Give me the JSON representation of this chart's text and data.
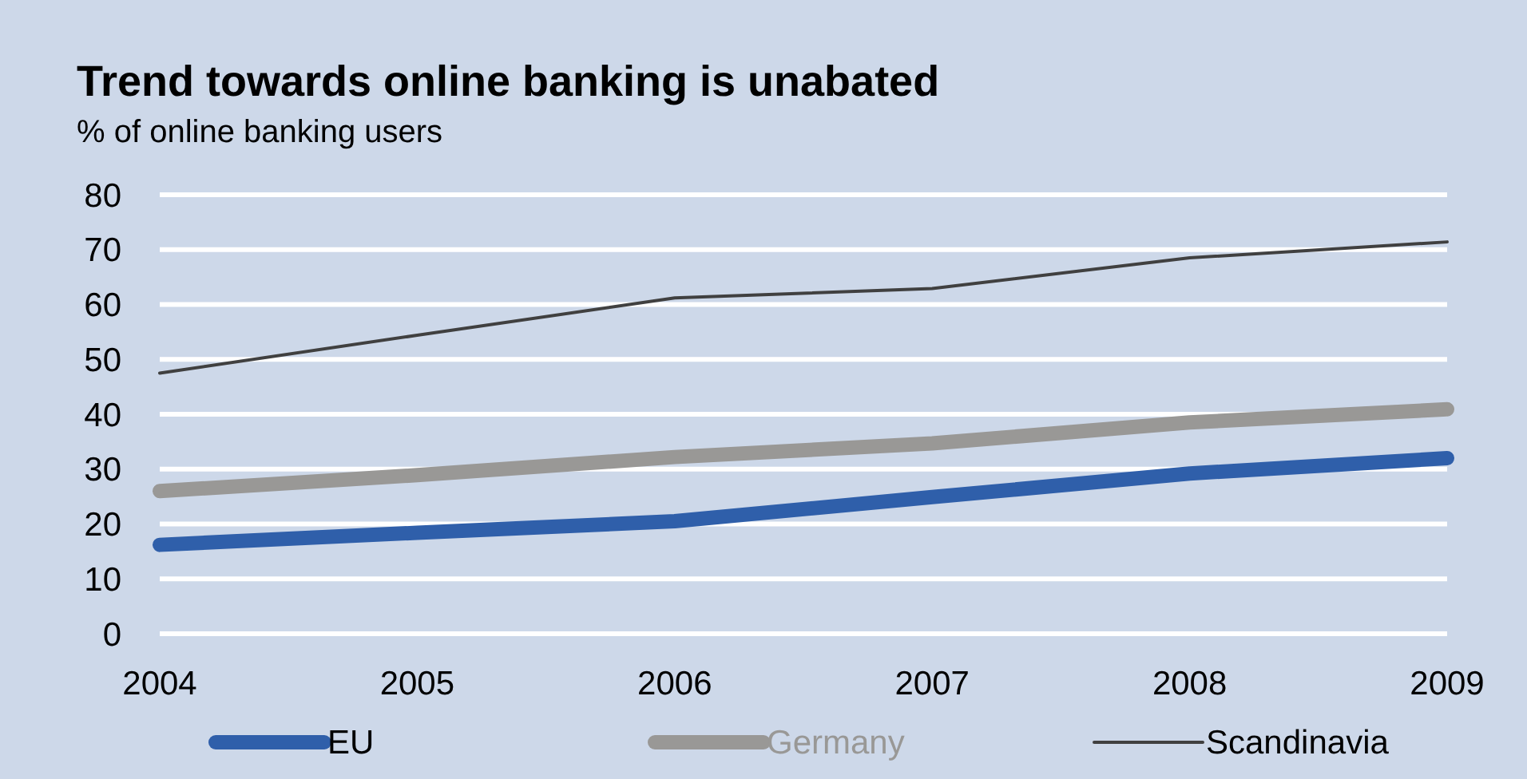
{
  "chart_data": {
    "type": "line",
    "title": "Trend towards online banking is unabated",
    "subtitle": "% of online banking users",
    "categories": [
      "2004",
      "2005",
      "2006",
      "2007",
      "2008",
      "2009"
    ],
    "series": [
      {
        "name": "EU",
        "color": "#2f5faa",
        "values": [
          16.2,
          18.4,
          20.5,
          24.9,
          29.2,
          32
        ]
      },
      {
        "name": "Germany",
        "color": "#999896",
        "values": [
          26,
          28.9,
          32.2,
          34.7,
          38.5,
          40.9
        ]
      },
      {
        "name": "Scandinavia",
        "color": "#404040",
        "values": [
          47.5,
          54.4,
          61.2,
          62.9,
          68.5,
          71.4
        ]
      }
    ],
    "ylim": [
      0,
      80
    ],
    "yticks": [
      0,
      10,
      20,
      30,
      40,
      50,
      60,
      70,
      80
    ],
    "grid": "y",
    "legend": "bottom",
    "marker": "none",
    "line_style": "solid"
  }
}
